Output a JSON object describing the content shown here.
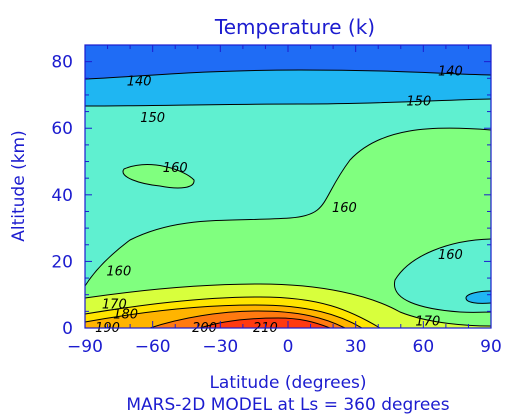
{
  "chart_data": {
    "type": "contour",
    "title": "Temperature (k)",
    "xlabel": "Latitude (degrees)",
    "ylabel": "Altitude (km)",
    "subtitle": "MARS-2D MODEL at Ls =  360 degrees",
    "xlim": [
      -90,
      90
    ],
    "ylim": [
      0,
      85
    ],
    "x_ticks": [
      "−90",
      "−60",
      "−30",
      "0",
      "30",
      "60",
      "90"
    ],
    "y_ticks": [
      "0",
      "20",
      "40",
      "60",
      "80"
    ],
    "contour_levels": [
      140,
      150,
      160,
      170,
      180,
      190,
      200,
      210
    ],
    "level_colors": {
      "below_140": "#1f6cf5",
      "140_150": "#1fb6f2",
      "150_160": "#5ff0d0",
      "160_170": "#80ff7f",
      "170_180": "#d8ff3c",
      "180_190": "#ffe500",
      "190_200": "#ffb400",
      "200_210": "#ff7a10",
      "above_210": "#ff3a10"
    },
    "contour_labels": [
      {
        "text": "140",
        "lat": -66,
        "alt": 74
      },
      {
        "text": "140",
        "lat": 72,
        "alt": 77
      },
      {
        "text": "150",
        "lat": -60,
        "alt": 63
      },
      {
        "text": "150",
        "lat": 58,
        "alt": 68
      },
      {
        "text": "160",
        "lat": -50,
        "alt": 48
      },
      {
        "text": "160",
        "lat": 25,
        "alt": 36
      },
      {
        "text": "160",
        "lat": -75,
        "alt": 17
      },
      {
        "text": "160",
        "lat": 72,
        "alt": 22
      },
      {
        "text": "170",
        "lat": -77,
        "alt": 7
      },
      {
        "text": "170",
        "lat": 62,
        "alt": 2
      },
      {
        "text": "180",
        "lat": -72,
        "alt": 4
      },
      {
        "text": "190",
        "lat": -80,
        "alt": 0
      },
      {
        "text": "200",
        "lat": -37,
        "alt": 0
      },
      {
        "text": "210",
        "lat": -10,
        "alt": 0
      }
    ]
  }
}
